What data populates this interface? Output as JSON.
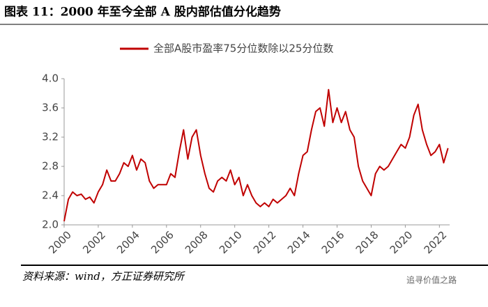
{
  "chart_data": {
    "type": "line",
    "title": "图表 11：2000 年至今全部 A 股内部估值分化趋势",
    "source": "资料来源：wind，方正证券研究所",
    "watermark": "追寻价值之路",
    "x": [
      2000,
      2000.25,
      2000.5,
      2000.75,
      2001,
      2001.25,
      2001.5,
      2001.75,
      2002,
      2002.25,
      2002.5,
      2002.75,
      2003,
      2003.25,
      2003.5,
      2003.75,
      2004,
      2004.25,
      2004.5,
      2004.75,
      2005,
      2005.25,
      2005.5,
      2005.75,
      2006,
      2006.25,
      2006.5,
      2006.75,
      2007,
      2007.25,
      2007.5,
      2007.75,
      2008,
      2008.25,
      2008.5,
      2008.75,
      2009,
      2009.25,
      2009.5,
      2009.75,
      2010,
      2010.25,
      2010.5,
      2010.75,
      2011,
      2011.25,
      2011.5,
      2011.75,
      2012,
      2012.25,
      2012.5,
      2012.75,
      2013,
      2013.25,
      2013.5,
      2013.75,
      2014,
      2014.25,
      2014.5,
      2014.75,
      2015,
      2015.25,
      2015.5,
      2015.75,
      2016,
      2016.25,
      2016.5,
      2016.75,
      2017,
      2017.25,
      2017.5,
      2017.75,
      2018,
      2018.25,
      2018.5,
      2018.75,
      2019,
      2019.25,
      2019.5,
      2019.75,
      2020,
      2020.25,
      2020.5,
      2020.75,
      2021,
      2021.25,
      2021.5,
      2021.75,
      2022,
      2022.25,
      2022.5
    ],
    "series": [
      {
        "name": "全部A股市盈率75分位数除以25分位数",
        "color": "#c00000",
        "values": [
          2.05,
          2.35,
          2.45,
          2.4,
          2.42,
          2.35,
          2.38,
          2.3,
          2.45,
          2.55,
          2.75,
          2.6,
          2.6,
          2.7,
          2.85,
          2.8,
          2.95,
          2.75,
          2.9,
          2.85,
          2.6,
          2.5,
          2.55,
          2.55,
          2.55,
          2.7,
          2.65,
          3.0,
          3.3,
          2.9,
          3.2,
          3.3,
          2.95,
          2.7,
          2.5,
          2.45,
          2.6,
          2.65,
          2.6,
          2.75,
          2.55,
          2.65,
          2.4,
          2.55,
          2.4,
          2.3,
          2.25,
          2.3,
          2.25,
          2.35,
          2.3,
          2.35,
          2.4,
          2.5,
          2.4,
          2.7,
          2.95,
          3.0,
          3.3,
          3.55,
          3.6,
          3.35,
          3.85,
          3.4,
          3.6,
          3.4,
          3.55,
          3.3,
          3.2,
          2.8,
          2.6,
          2.5,
          2.4,
          2.7,
          2.8,
          2.75,
          2.8,
          2.9,
          3.0,
          3.1,
          3.05,
          3.2,
          3.5,
          3.65,
          3.3,
          3.1,
          2.95,
          3.0,
          3.1,
          2.85,
          3.05
        ]
      }
    ],
    "xlim": [
      2000,
      2022.6
    ],
    "xticks": [
      2000,
      2002,
      2004,
      2006,
      2008,
      2010,
      2012,
      2014,
      2016,
      2018,
      2020,
      2022
    ],
    "ylim": [
      2.0,
      4.0
    ],
    "yticks": [
      {
        "value": 2.0,
        "label": "2.0"
      },
      {
        "value": 2.4,
        "label": "2.4"
      },
      {
        "value": 2.8,
        "label": "2.8"
      },
      {
        "value": 3.2,
        "label": "3.2"
      },
      {
        "value": 3.6,
        "label": "3.6"
      },
      {
        "value": 4.0,
        "label": "4.0"
      }
    ],
    "grid": false,
    "legend": "top"
  }
}
